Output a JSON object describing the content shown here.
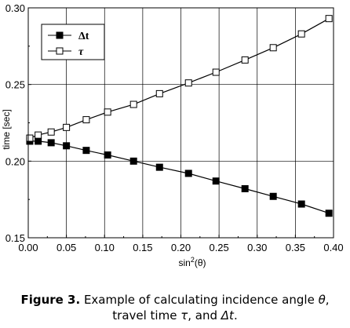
{
  "chart_data": {
    "type": "line",
    "xlabel": "sin",
    "xlabel_sup": "2",
    "xlabel_suffix": "(θ)",
    "ylabel": "time [sec]",
    "xlim": [
      0.0,
      0.4
    ],
    "ylim": [
      0.15,
      0.3
    ],
    "x_ticks": [
      "0.00",
      "0.05",
      "0.10",
      "0.15",
      "0.20",
      "0.25",
      "0.30",
      "0.35",
      "0.40"
    ],
    "y_ticks": [
      "0.15",
      "0.20",
      "0.25",
      "0.30"
    ],
    "grid": true,
    "legend_position": "top-left",
    "series": [
      {
        "name": "Δt",
        "marker": "filled-square",
        "color": "#000000",
        "points": [
          [
            0.002,
            0.213
          ],
          [
            0.013,
            0.213
          ],
          [
            0.03,
            0.212
          ],
          [
            0.05,
            0.21
          ],
          [
            0.076,
            0.207
          ],
          [
            0.104,
            0.204
          ],
          [
            0.138,
            0.2
          ],
          [
            0.172,
            0.196
          ],
          [
            0.21,
            0.192
          ],
          [
            0.246,
            0.187
          ],
          [
            0.284,
            0.182
          ],
          [
            0.321,
            0.177
          ],
          [
            0.358,
            0.172
          ],
          [
            0.394,
            0.166
          ]
        ]
      },
      {
        "name": "τ",
        "marker": "open-square",
        "color": "#000000",
        "points": [
          [
            0.002,
            0.215
          ],
          [
            0.013,
            0.217
          ],
          [
            0.03,
            0.219
          ],
          [
            0.05,
            0.222
          ],
          [
            0.076,
            0.227
          ],
          [
            0.104,
            0.232
          ],
          [
            0.138,
            0.237
          ],
          [
            0.172,
            0.244
          ],
          [
            0.21,
            0.251
          ],
          [
            0.246,
            0.258
          ],
          [
            0.284,
            0.266
          ],
          [
            0.321,
            0.274
          ],
          [
            0.358,
            0.283
          ],
          [
            0.394,
            0.293
          ]
        ]
      }
    ]
  },
  "caption": {
    "label": "Figure 3.",
    "text_1": " Example of calculating incidence angle ",
    "theta": "θ",
    "text_2": ",",
    "text_3": "travel time ",
    "tau": "τ",
    "text_4": ", and ",
    "delta_t": "Δt",
    "text_5": "."
  }
}
